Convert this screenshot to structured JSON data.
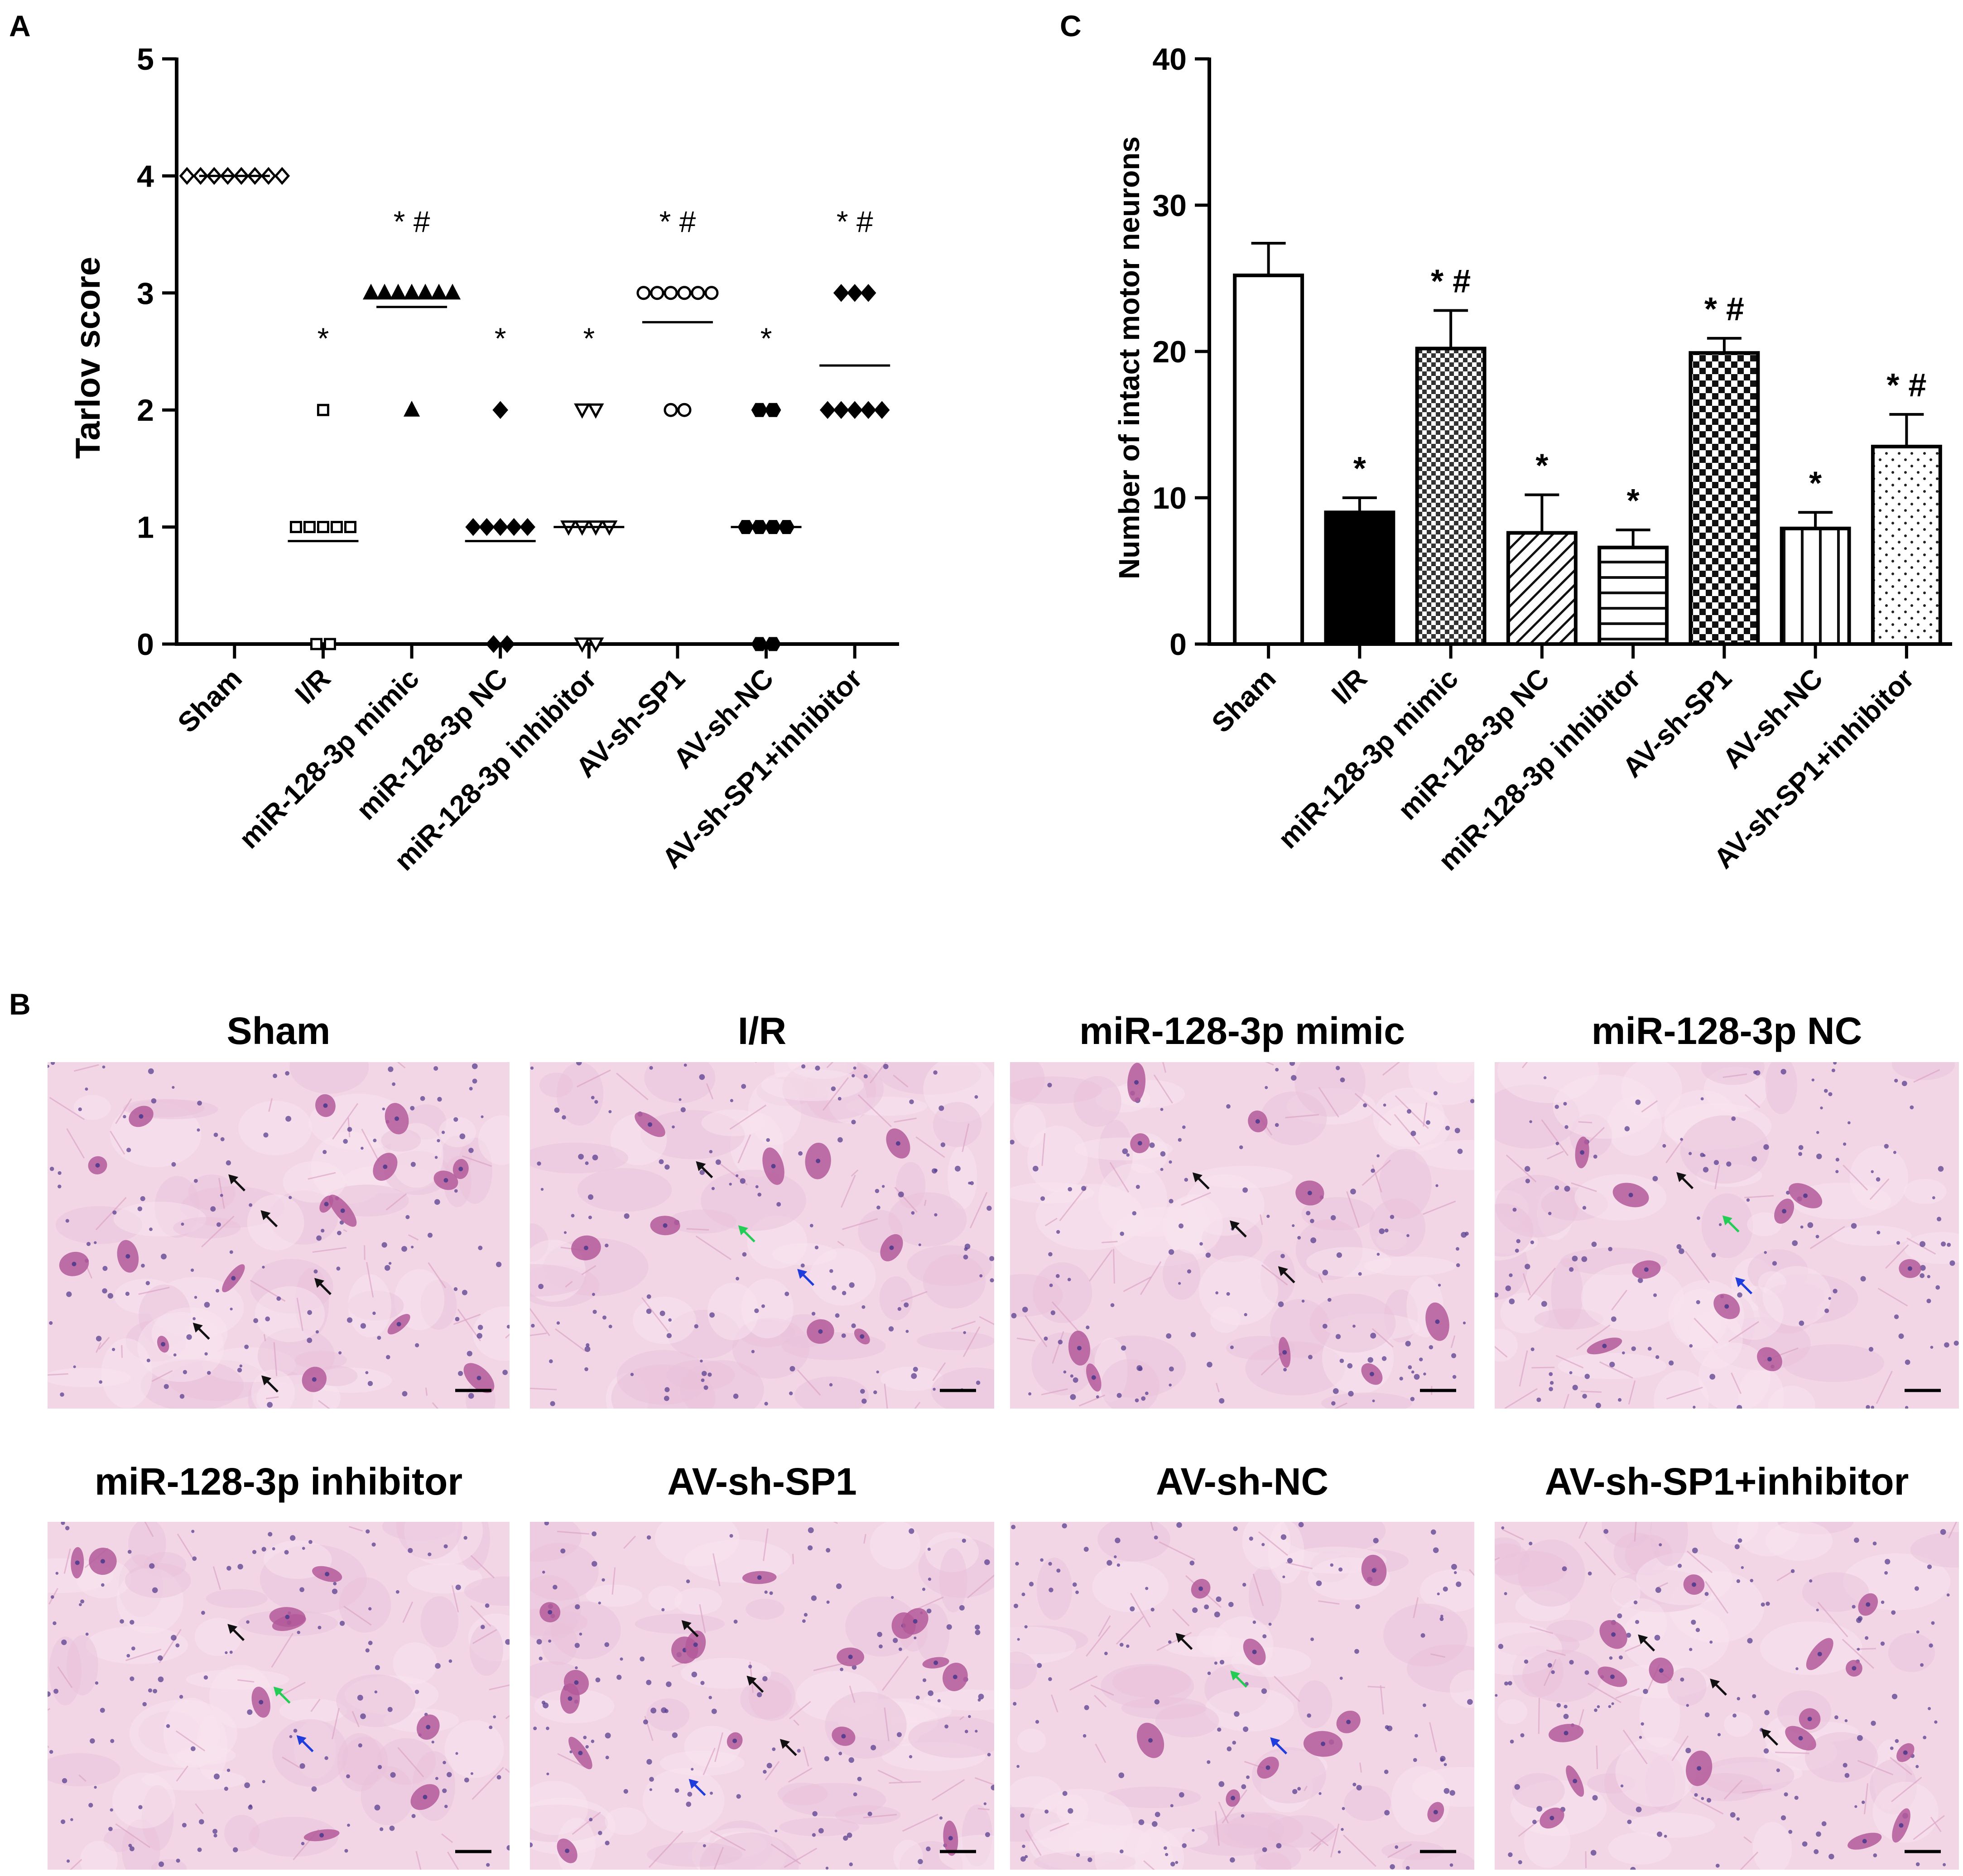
{
  "panel_letters": {
    "a": "A",
    "b": "B",
    "c": "C"
  },
  "panel_a": {
    "ylabel": "Tarlov score",
    "yticks": [
      "0",
      "1",
      "2",
      "3",
      "4",
      "5"
    ]
  },
  "panel_c": {
    "ylabel": "Number of intact motor neurons",
    "yticks": [
      "0",
      "10",
      "20",
      "30",
      "40"
    ]
  },
  "panel_b": {
    "titles": [
      "Sham",
      "I/R",
      "miR-128-3p mimic",
      "miR-128-3p NC",
      "miR-128-3p inhibitor",
      "AV-sh-SP1",
      "AV-sh-NC",
      "AV-sh-SP1+inhibitor"
    ],
    "arrow_colors": {
      "black": "#111111",
      "green": "#22cc55",
      "blue": "#1f3cdd"
    },
    "stain_colors": {
      "background": "#f2d6e6",
      "neuron": "#b45a9a",
      "nucleus": "#5a3f8f"
    }
  },
  "chart_data": [
    {
      "type": "scatter",
      "panel": "A",
      "ylabel": "Tarlov score",
      "ylim": [
        0,
        5
      ],
      "categories": [
        "Sham",
        "I/R",
        "miR-128-3p mimic",
        "miR-128-3p NC",
        "miR-128-3p inhibitor",
        "AV-sh-SP1",
        "AV-sh-NC",
        "AV-sh-SP1+inhibitor"
      ],
      "series": [
        {
          "category": "Sham",
          "marker": "diamond-open",
          "points": [
            4,
            4,
            4,
            4,
            4,
            4,
            4,
            4
          ],
          "mean": 4.0,
          "annotation": ""
        },
        {
          "category": "I/R",
          "marker": "square-open",
          "points": [
            2,
            1,
            1,
            1,
            1,
            1,
            0,
            0
          ],
          "mean": 0.88,
          "annotation": "*"
        },
        {
          "category": "miR-128-3p mimic",
          "marker": "triangle-filled",
          "points": [
            3,
            3,
            3,
            3,
            3,
            3,
            3,
            2
          ],
          "mean": 2.88,
          "annotation": "* #"
        },
        {
          "category": "miR-128-3p NC",
          "marker": "diamond-filled",
          "points": [
            2,
            1,
            1,
            1,
            1,
            1,
            0,
            0
          ],
          "mean": 0.88,
          "annotation": "*"
        },
        {
          "category": "miR-128-3p inhibitor",
          "marker": "triangle-down-open",
          "points": [
            2,
            2,
            1,
            1,
            1,
            1,
            0,
            0
          ],
          "mean": 1.0,
          "annotation": "*"
        },
        {
          "category": "AV-sh-SP1",
          "marker": "circle-open",
          "points": [
            3,
            3,
            3,
            3,
            3,
            3,
            2,
            2
          ],
          "mean": 2.75,
          "annotation": "* #"
        },
        {
          "category": "AV-sh-NC",
          "marker": "hexagon-filled",
          "points": [
            2,
            2,
            1,
            1,
            1,
            1,
            0,
            0
          ],
          "mean": 1.0,
          "annotation": "*"
        },
        {
          "category": "AV-sh-SP1+inhibitor",
          "marker": "diamond-filled",
          "points": [
            3,
            3,
            3,
            2,
            2,
            2,
            2,
            2
          ],
          "mean": 2.38,
          "annotation": "* #"
        }
      ]
    },
    {
      "type": "bar",
      "panel": "C",
      "ylabel": "Number of intact motor neurons",
      "ylim": [
        0,
        40
      ],
      "categories": [
        "Sham",
        "I/R",
        "miR-128-3p mimic",
        "miR-128-3p NC",
        "miR-128-3p inhibitor",
        "AV-sh-SP1",
        "AV-sh-NC",
        "AV-sh-SP1+inhibitor"
      ],
      "values": [
        25.2,
        9.0,
        20.2,
        7.6,
        6.6,
        19.9,
        7.9,
        13.5
      ],
      "errors": [
        2.2,
        1.0,
        2.6,
        2.6,
        1.2,
        1.0,
        1.1,
        2.2
      ],
      "annotations": [
        "",
        "*",
        "* #",
        "*",
        "*",
        "* #",
        "*",
        "* #"
      ],
      "patterns": [
        "open",
        "solid",
        "checker-fine",
        "diagonal",
        "horizontal",
        "checker-coarse",
        "vertical",
        "dots"
      ]
    }
  ]
}
